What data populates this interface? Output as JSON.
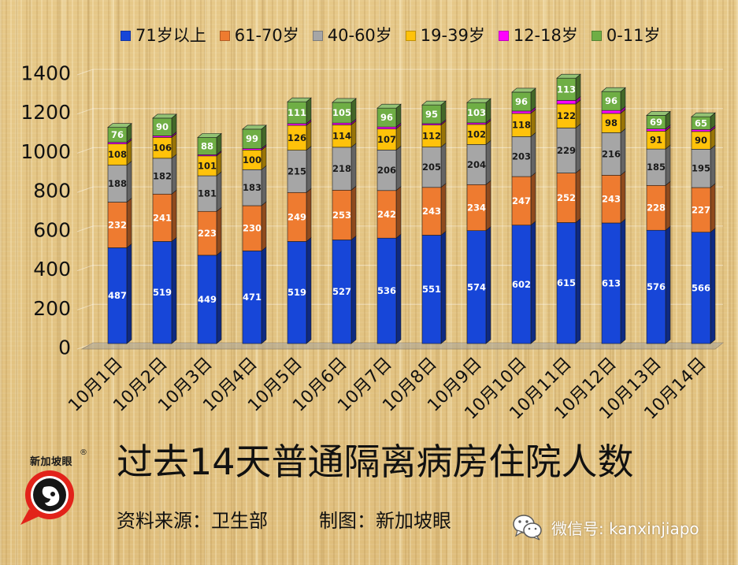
{
  "chart_data": {
    "type": "bar",
    "stacked": true,
    "categories": [
      "10月1日",
      "10月2日",
      "10月3日",
      "10月4日",
      "10月5日",
      "10月6日",
      "10月7日",
      "10月8日",
      "10月9日",
      "10月10日",
      "10月11日",
      "10月12日",
      "10月13日",
      "10月14日"
    ],
    "series": [
      {
        "name": "71岁以上",
        "color": "#1746d8",
        "label_color": "#ffffff",
        "show_labels": true,
        "values": [
          487,
          519,
          449,
          471,
          519,
          527,
          536,
          551,
          574,
          602,
          615,
          613,
          576,
          566
        ]
      },
      {
        "name": "61-70岁",
        "color": "#ee7b30",
        "label_color": "#ffffff",
        "show_labels": true,
        "values": [
          232,
          241,
          223,
          230,
          249,
          253,
          242,
          243,
          234,
          247,
          252,
          243,
          228,
          227
        ]
      },
      {
        "name": "40-60岁",
        "color": "#a6a6a6",
        "label_color": "#1a1a1a",
        "show_labels": true,
        "values": [
          188,
          182,
          181,
          183,
          215,
          218,
          206,
          205,
          204,
          203,
          229,
          216,
          185,
          195
        ]
      },
      {
        "name": "19-39岁",
        "color": "#ffc20a",
        "label_color": "#1a1a1a",
        "show_labels": true,
        "values": [
          108,
          106,
          101,
          100,
          126,
          114,
          107,
          112,
          102,
          118,
          122,
          98,
          91,
          90
        ]
      },
      {
        "name": "12-18岁",
        "color": "#ff00ff",
        "label_color": "#1a1a1a",
        "show_labels": false,
        "values": [
          8,
          8,
          6,
          7,
          9,
          9,
          10,
          7,
          8,
          12,
          18,
          15,
          11,
          10
        ]
      },
      {
        "name": "0-11岁",
        "color": "#6fae45",
        "label_color": "#ffffff",
        "show_labels": true,
        "values": [
          76,
          90,
          88,
          99,
          111,
          105,
          96,
          95,
          103,
          96,
          113,
          96,
          69,
          65
        ]
      }
    ],
    "title": "过去14天普通隔离病房住院人数",
    "ylim": [
      0,
      1400
    ],
    "yticks": [
      0,
      200,
      400,
      600,
      800,
      1000,
      1200,
      1400
    ],
    "grid": true,
    "legend": "top"
  },
  "source_note": "资料来源：卫生部",
  "credit_note": "制图：新加坡眼",
  "watermark": {
    "icon": "wechat-icon",
    "text": "微信号: kanxinjiapo"
  },
  "logo": {
    "icon": "eye-logo-icon",
    "text": "新加坡眼",
    "mark": "®"
  }
}
